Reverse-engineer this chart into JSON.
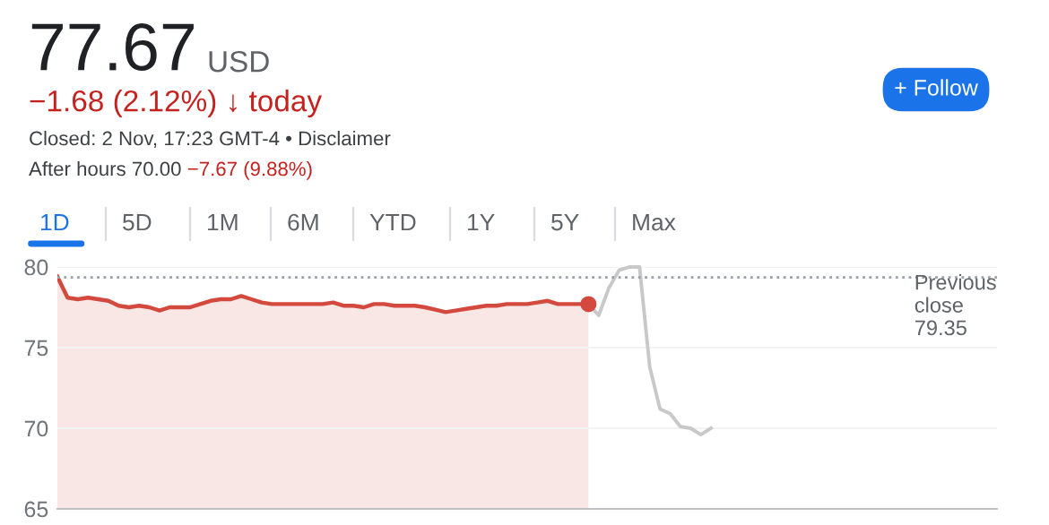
{
  "chart_data": {
    "type": "area",
    "annotations": [
      "77.67",
      "USD",
      "−1.68 (2.12%) ↓ today",
      "Closed: 2 Nov, 17:23 GMT-4 • Disclaimer",
      "After hours 70.00",
      "−7.67 (9.88%)",
      "1D",
      "5D",
      "1M",
      "6M",
      "YTD",
      "1Y",
      "5Y",
      "Max",
      "+ Follow"
    ],
    "categories": [
      null,
      null,
      null,
      null,
      null,
      null,
      null,
      null,
      null,
      null,
      null,
      null,
      null,
      null,
      null,
      null,
      null,
      null,
      null,
      null,
      null,
      null,
      null,
      null,
      null,
      null,
      null,
      null,
      null,
      null,
      null,
      null,
      null,
      null,
      null,
      null,
      null,
      null,
      null,
      null,
      null,
      null,
      null,
      null,
      null,
      null,
      null,
      null,
      null,
      null,
      null,
      null,
      null,
      null,
      null,
      null,
      null,
      null,
      null,
      null,
      null,
      null,
      null,
      null,
      null,
      null,
      null,
      null,
      null,
      null,
      null,
      null,
      null,
      null,
      null,
      null,
      null,
      null,
      null,
      null,
      null,
      null,
      null,
      null,
      null,
      null,
      null,
      null,
      null,
      null,
      null,
      null,
      null
    ],
    "series": [
      {
        "color": "#d4493e",
        "values": [
          79.4,
          78.1,
          78.0,
          78.1,
          78.0,
          77.9,
          77.6,
          77.5,
          77.6,
          77.5,
          77.3,
          77.5,
          77.5,
          77.5,
          77.7,
          77.9,
          78.0,
          78.0,
          78.2,
          78.0,
          77.8,
          77.7,
          77.7,
          77.7,
          77.7,
          77.7,
          77.7,
          77.8,
          77.6,
          77.6,
          77.5,
          77.7,
          77.7,
          77.6,
          77.6,
          77.6,
          77.5,
          77.35,
          77.2,
          77.3,
          77.4,
          77.5,
          77.6,
          77.6,
          77.7,
          77.7,
          77.7,
          77.8,
          77.9,
          77.7,
          77.7,
          77.7,
          77.7,
          null,
          null,
          null,
          null,
          null,
          null,
          null,
          null,
          null,
          null,
          null,
          null,
          null,
          null,
          null,
          null,
          null,
          null,
          null,
          null,
          null,
          null,
          null,
          null,
          null,
          null,
          null,
          null,
          null,
          null,
          null,
          null,
          null,
          null,
          null,
          null,
          null,
          null,
          null,
          null
        ]
      },
      {
        "type": "line",
        "color": "#c8c8c8",
        "values": [
          null,
          null,
          null,
          null,
          null,
          null,
          null,
          null,
          null,
          null,
          null,
          null,
          null,
          null,
          null,
          null,
          null,
          null,
          null,
          null,
          null,
          null,
          null,
          null,
          null,
          null,
          null,
          null,
          null,
          null,
          null,
          null,
          null,
          null,
          null,
          null,
          null,
          null,
          null,
          null,
          null,
          null,
          null,
          null,
          null,
          null,
          null,
          null,
          null,
          null,
          null,
          null,
          77.7,
          77.0,
          78.7,
          79.8,
          80.0,
          80.0,
          73.8,
          71.2,
          70.9,
          70.1,
          70.0,
          69.6,
          70.0,
          null,
          null,
          null,
          null,
          null,
          null,
          null,
          null,
          null,
          null,
          null,
          null,
          null,
          null,
          null,
          null,
          null,
          null,
          null,
          null,
          null,
          null,
          null,
          null,
          null,
          null,
          null,
          null
        ]
      },
      {
        "type": "scatter",
        "color": "#d4493e",
        "values": [
          null,
          null,
          null,
          null,
          null,
          null,
          null,
          null,
          null,
          null,
          null,
          null,
          null,
          null,
          null,
          null,
          null,
          null,
          null,
          null,
          null,
          null,
          null,
          null,
          null,
          null,
          null,
          null,
          null,
          null,
          null,
          null,
          null,
          null,
          null,
          null,
          null,
          null,
          null,
          null,
          null,
          null,
          null,
          null,
          null,
          null,
          null,
          null,
          null,
          null,
          null,
          null,
          77.7,
          null,
          null,
          null,
          null,
          null,
          null,
          null,
          null,
          null,
          null,
          null,
          null,
          null,
          null,
          null,
          null,
          null,
          null,
          null,
          null,
          null,
          null,
          null,
          null,
          null,
          null,
          null,
          null,
          null,
          null,
          null,
          null,
          null,
          null,
          null,
          null,
          null,
          null,
          null,
          null
        ]
      }
    ],
    "ylim": [
      65,
      80
    ],
    "yticks": [
      65,
      70,
      75,
      80
    ],
    "ref_lines": [
      {
        "axis": "y",
        "value": 79.35,
        "label": "Previous\nclose\n79.35",
        "color": "#9aa0a6",
        "line_style": "dotted"
      }
    ],
    "grid": "y",
    "tick_labels": "y",
    "legend": false
  }
}
